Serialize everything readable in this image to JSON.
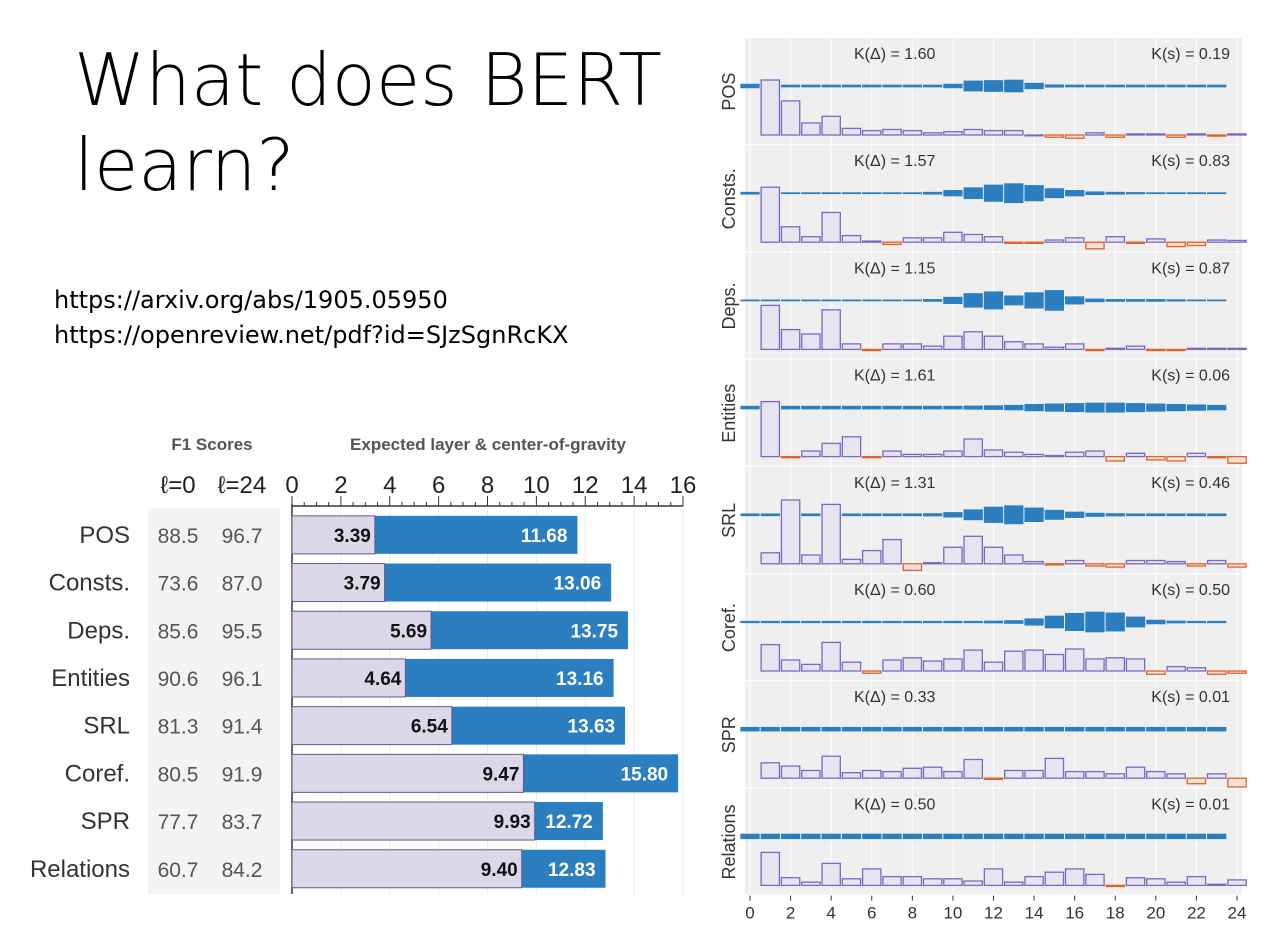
{
  "slide": {
    "title": "What does BERT learn?",
    "links": [
      "https://arxiv.org/abs/1905.05950",
      "https://openreview.net/pdf?id=SJzSgnRcKX"
    ]
  },
  "colors": {
    "expected_layer": "#dcd8ea",
    "center_of_gravity": "#2b7fc1",
    "positive": "#7b68c4",
    "negative": "#e0622a",
    "panel_bg": "#efefef"
  },
  "chart_data": [
    {
      "type": "bar",
      "f1_header": "F1 Scores",
      "f1_columns": [
        "ℓ=0",
        "ℓ=24"
      ],
      "title": "Expected layer & center-of-gravity",
      "xlim": [
        0,
        16
      ],
      "xticks": [
        0,
        2,
        4,
        6,
        8,
        10,
        12,
        14,
        16
      ],
      "categories": [
        "POS",
        "Consts.",
        "Deps.",
        "Entities",
        "SRL",
        "Coref.",
        "SPR",
        "Relations"
      ],
      "f1_l0": [
        "88.5",
        "73.6",
        "85.6",
        "90.6",
        "81.3",
        "80.5",
        "77.7",
        "60.7"
      ],
      "f1_l24": [
        "96.7",
        "87.0",
        "95.5",
        "96.1",
        "91.4",
        "91.9",
        "83.7",
        "84.2"
      ],
      "series": [
        {
          "values": [
            3.39,
            3.79,
            5.69,
            4.64,
            6.54,
            9.47,
            9.93,
            9.4
          ],
          "labels": [
            "3.39",
            "3.79",
            "5.69",
            "4.64",
            "6.54",
            "9.47",
            "9.93",
            "9.40"
          ]
        },
        {
          "values": [
            11.68,
            13.06,
            13.75,
            13.16,
            13.63,
            15.8,
            12.72,
            12.83
          ],
          "labels": [
            "11.68",
            "13.06",
            "13.75",
            "13.16",
            "13.63",
            "15.80",
            "12.72",
            "12.83"
          ]
        }
      ]
    },
    {
      "type": "bar",
      "xlim": [
        0,
        24
      ],
      "xticks": [
        0,
        2,
        4,
        6,
        8,
        10,
        12,
        14,
        16,
        18,
        20,
        22,
        24
      ],
      "tasks": [
        {
          "name": "POS",
          "k_delta": "K(Δ) = 1.60",
          "k_s": "K(s) = 0.19",
          "bars": [
            2.5,
            1.55,
            0.55,
            0.85,
            0.3,
            0.2,
            0.25,
            0.2,
            0.1,
            0.15,
            0.25,
            0.2,
            0.2,
            0,
            -0.1,
            -0.15,
            0.1,
            -0.1,
            0.05,
            0.05,
            -0.1,
            0.05,
            -0.05,
            0.05
          ],
          "blue": [
            0.5,
            0.3,
            0.3,
            0.3,
            0.3,
            0.3,
            0.3,
            0.3,
            0.3,
            0.3,
            0.5,
            1.2,
            1.3,
            1.4,
            0.7,
            0.35,
            0.3,
            0.3,
            0.3,
            0.3,
            0.3,
            0.3,
            0.3,
            0.3
          ]
        },
        {
          "name": "Consts.",
          "k_delta": "K(Δ) = 1.57",
          "k_s": "K(s) = 0.83",
          "bars": [
            2.5,
            0.7,
            0.25,
            1.35,
            0.3,
            0.05,
            -0.1,
            0.2,
            0.2,
            0.45,
            0.35,
            0.25,
            -0.05,
            -0.05,
            0.1,
            0.2,
            -0.3,
            0.25,
            -0.05,
            0.15,
            -0.2,
            -0.15,
            0.1,
            0.08
          ],
          "blue": [
            0.3,
            0.2,
            0.2,
            0.2,
            0.2,
            0.2,
            0.2,
            0.2,
            0.2,
            0.3,
            0.7,
            1.3,
            1.9,
            2.2,
            1.8,
            1.1,
            0.7,
            0.4,
            0.3,
            0.25,
            0.2,
            0.2,
            0.2,
            0.2
          ]
        },
        {
          "name": "Deps.",
          "k_delta": "K(Δ) = 1.15",
          "k_s": "K(s) = 0.87",
          "bars": [
            2.0,
            0.9,
            0.7,
            1.8,
            0.25,
            -0.05,
            0.25,
            0.25,
            0.15,
            0.6,
            0.8,
            0.6,
            0.35,
            0.25,
            0.1,
            0.25,
            -0.05,
            0.05,
            0.15,
            -0.05,
            -0.05,
            0.05,
            0.05,
            0.05
          ],
          "blue": [
            0.2,
            0.2,
            0.2,
            0.2,
            0.2,
            0.2,
            0.2,
            0.2,
            0.2,
            0.3,
            0.8,
            1.6,
            2.0,
            1.1,
            1.8,
            2.3,
            0.9,
            0.4,
            0.3,
            0.3,
            0.3,
            0.25,
            0.2,
            0.2
          ]
        },
        {
          "name": "Entities",
          "k_delta": "K(Δ) = 1.61",
          "k_s": "K(s) = 0.06",
          "bars": [
            2.5,
            -0.05,
            0.25,
            0.6,
            0.9,
            -0.05,
            0.25,
            0.1,
            0.1,
            0.25,
            0.8,
            0.3,
            0.2,
            0.1,
            0.05,
            0.2,
            0.25,
            -0.2,
            0.15,
            -0.15,
            -0.2,
            0.15,
            -0.05,
            -0.3
          ],
          "blue": [
            0.4,
            0.4,
            0.4,
            0.4,
            0.4,
            0.4,
            0.4,
            0.4,
            0.4,
            0.4,
            0.4,
            0.45,
            0.5,
            0.6,
            0.8,
            0.9,
            1.0,
            1.1,
            1.1,
            1.0,
            0.9,
            0.8,
            0.7,
            0.6
          ]
        },
        {
          "name": "SRL",
          "k_delta": "K(Δ) = 1.31",
          "k_s": "K(s) = 0.46",
          "bars": [
            0.5,
            2.9,
            0.4,
            2.7,
            0.2,
            0.6,
            1.1,
            -0.3,
            0.05,
            0.75,
            1.25,
            0.75,
            0.4,
            0.1,
            -0.05,
            0.15,
            -0.1,
            -0.15,
            0.15,
            0.15,
            0.1,
            -0.1,
            0.15,
            -0.15
          ],
          "blue": [
            0.3,
            0.3,
            0.3,
            0.3,
            0.3,
            0.3,
            0.3,
            0.3,
            0.3,
            0.35,
            0.6,
            1.2,
            1.8,
            2.1,
            1.6,
            1.1,
            0.7,
            0.45,
            0.35,
            0.3,
            0.3,
            0.3,
            0.3,
            0.3
          ]
        },
        {
          "name": "Coref.",
          "k_delta": "K(Δ) = 0.60",
          "k_s": "K(s) = 0.50",
          "bars": [
            1.2,
            0.5,
            0.3,
            1.3,
            0.4,
            -0.1,
            0.5,
            0.6,
            0.45,
            0.55,
            0.95,
            0.4,
            0.9,
            0.95,
            0.75,
            1.0,
            0.55,
            0.6,
            0.55,
            -0.15,
            0.2,
            0.15,
            -0.15,
            -0.1
          ],
          "blue": [
            0.25,
            0.25,
            0.25,
            0.25,
            0.25,
            0.25,
            0.25,
            0.25,
            0.25,
            0.25,
            0.25,
            0.25,
            0.3,
            0.4,
            0.8,
            1.4,
            2.0,
            2.3,
            2.1,
            1.2,
            0.5,
            0.3,
            0.25,
            0.25
          ]
        },
        {
          "name": "SPR",
          "k_delta": "K(Δ) = 0.33",
          "k_s": "K(s) = 0.01",
          "bars": [
            0.7,
            0.55,
            0.35,
            1.0,
            0.25,
            0.35,
            0.3,
            0.45,
            0.5,
            0.3,
            0.85,
            -0.05,
            0.35,
            0.35,
            0.9,
            0.3,
            0.3,
            0.2,
            0.5,
            0.3,
            0.2,
            -0.25,
            0.2,
            -0.4
          ],
          "blue": [
            0.5,
            0.5,
            0.5,
            0.5,
            0.5,
            0.5,
            0.5,
            0.5,
            0.5,
            0.5,
            0.5,
            0.5,
            0.5,
            0.5,
            0.5,
            0.5,
            0.5,
            0.5,
            0.5,
            0.5,
            0.5,
            0.5,
            0.5,
            0.5
          ]
        },
        {
          "name": "Relations",
          "k_delta": "K(Δ) = 0.50",
          "k_s": "K(s) = 0.01",
          "bars": [
            1.5,
            0.35,
            0.15,
            1.0,
            0.3,
            0.75,
            0.4,
            0.4,
            0.3,
            0.3,
            0.2,
            0.75,
            0.15,
            0.4,
            0.6,
            0.75,
            0.5,
            -0.05,
            0.35,
            0.3,
            0.15,
            0.4,
            0.05,
            0.25
          ],
          "blue": [
            0.6,
            0.6,
            0.6,
            0.6,
            0.6,
            0.6,
            0.6,
            0.6,
            0.6,
            0.6,
            0.6,
            0.6,
            0.6,
            0.6,
            0.6,
            0.6,
            0.6,
            0.6,
            0.6,
            0.6,
            0.6,
            0.6,
            0.6,
            0.6
          ]
        }
      ]
    }
  ]
}
